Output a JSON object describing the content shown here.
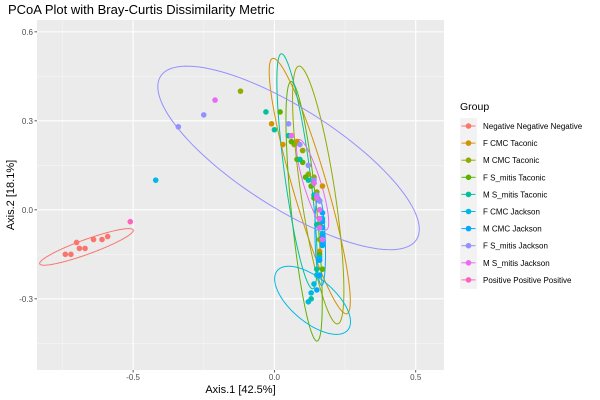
{
  "chart_data": {
    "type": "scatter",
    "title": "PCoA Plot with Bray-Curtis Dissimilarity Metric",
    "xlabel": "Axis.1   [42.5%]",
    "ylabel": "Axis.2   [18.1%]",
    "xlim": [
      -0.84,
      0.6
    ],
    "ylim": [
      -0.54,
      0.64
    ],
    "xticks": [
      -0.5,
      0.0,
      0.5
    ],
    "xtick_labels": [
      "-0.5",
      "0.0",
      "0.5"
    ],
    "yticks": [
      -0.3,
      0.0,
      0.3,
      0.6
    ],
    "ytick_labels": [
      "-0.3",
      "0.0",
      "0.3",
      "0.6"
    ],
    "grid": true,
    "legend_title": "Group",
    "legend_position": "right",
    "series": [
      {
        "name": "Negative Negative Negative",
        "color": "#F8766D",
        "points": [
          [
            -0.74,
            -0.15
          ],
          [
            -0.72,
            -0.15
          ],
          [
            -0.7,
            -0.11
          ],
          [
            -0.69,
            -0.13
          ],
          [
            -0.67,
            -0.13
          ],
          [
            -0.64,
            -0.1
          ],
          [
            -0.61,
            -0.1
          ],
          [
            -0.59,
            -0.09
          ]
        ],
        "ellipse": {
          "cx": -0.665,
          "cy": -0.125,
          "rx": 0.175,
          "ry": 0.025,
          "angle": 19
        }
      },
      {
        "name": "F CMC Taconic",
        "color": "#D39200",
        "points": [
          [
            -0.01,
            0.29
          ],
          [
            0.03,
            0.22
          ],
          [
            0.06,
            0.25
          ],
          [
            0.08,
            0.23
          ],
          [
            0.1,
            0.2
          ],
          [
            0.14,
            0.09
          ],
          [
            0.17,
            0.08
          ],
          [
            0.16,
            0.03
          ],
          [
            0.15,
            -0.05
          ],
          [
            0.16,
            -0.14
          ]
        ],
        "ellipse": {
          "cx": 0.125,
          "cy": 0.08,
          "rx": 0.45,
          "ry": 0.06,
          "angle": -73
        }
      },
      {
        "name": "M CMC Taconic",
        "color": "#93AA00",
        "points": [
          [
            -0.12,
            0.4
          ],
          [
            0.05,
            0.25
          ],
          [
            0.07,
            0.22
          ],
          [
            0.1,
            0.2
          ],
          [
            0.12,
            0.12
          ],
          [
            0.14,
            0.11
          ],
          [
            0.15,
            0.06
          ],
          [
            0.16,
            -0.03
          ],
          [
            0.16,
            -0.1
          ],
          [
            0.15,
            -0.2
          ]
        ],
        "ellipse": {
          "cx": 0.155,
          "cy": 0.05,
          "rx": 0.44,
          "ry": 0.06,
          "angle": -81
        }
      },
      {
        "name": "F S_mitis Taconic",
        "color": "#5BB300",
        "points": [
          [
            0.02,
            0.33
          ],
          [
            0.06,
            0.23
          ],
          [
            0.08,
            0.17
          ],
          [
            0.1,
            0.16
          ],
          [
            0.11,
            0.11
          ],
          [
            0.13,
            0.08
          ],
          [
            0.14,
            0.04
          ],
          [
            0.16,
            -0.05
          ],
          [
            0.16,
            -0.15
          ],
          [
            0.17,
            -0.2
          ]
        ],
        "ellipse": {
          "cx": 0.105,
          "cy": -0.005,
          "rx": 0.44,
          "ry": 0.045,
          "angle": -84
        }
      },
      {
        "name": "M S_mitis Taconic",
        "color": "#00C19F",
        "points": [
          [
            -0.03,
            0.33
          ],
          [
            0.0,
            0.27
          ],
          [
            0.05,
            0.25
          ],
          [
            0.09,
            0.17
          ],
          [
            0.12,
            0.1
          ],
          [
            0.14,
            0.05
          ],
          [
            0.15,
            -0.05
          ],
          [
            0.15,
            -0.2
          ],
          [
            0.13,
            -0.3
          ]
        ],
        "ellipse": {
          "cx": 0.08,
          "cy": 0.13,
          "rx": 0.4,
          "ry": 0.045,
          "angle": -82
        }
      },
      {
        "name": "F CMC Jackson",
        "color": "#00B9E3",
        "points": [
          [
            -0.42,
            0.1
          ],
          [
            0.16,
            0.0
          ],
          [
            0.17,
            -0.03
          ],
          [
            0.17,
            -0.08
          ],
          [
            0.17,
            -0.11
          ],
          [
            0.16,
            -0.16
          ],
          [
            0.15,
            -0.22
          ],
          [
            0.14,
            -0.25
          ],
          [
            0.13,
            -0.28
          ],
          [
            0.12,
            -0.31
          ]
        ],
        "ellipse": {
          "cx": 0.135,
          "cy": -0.305,
          "rx": 0.16,
          "ry": 0.075,
          "angle": -38
        }
      },
      {
        "name": "M CMC Jackson",
        "color": "#00A9FF",
        "points": [
          [
            0.16,
            0.03
          ],
          [
            0.17,
            -0.01
          ],
          [
            0.17,
            -0.04
          ],
          [
            0.17,
            -0.06
          ],
          [
            0.17,
            -0.09
          ],
          [
            0.17,
            -0.12
          ],
          [
            0.16,
            -0.17
          ],
          [
            0.16,
            -0.22
          ],
          [
            0.15,
            -0.27
          ]
        ],
        "ellipse": {
          "cx": 0.162,
          "cy": -0.105,
          "rx": 0.15,
          "ry": 0.018,
          "angle": -88
        }
      },
      {
        "name": "F S_mitis Jackson",
        "color": "#9590FF",
        "points": [
          [
            -0.34,
            0.28
          ],
          [
            -0.25,
            0.32
          ],
          [
            0.05,
            0.29
          ],
          [
            0.09,
            0.22
          ],
          [
            0.12,
            0.15
          ],
          [
            0.14,
            0.1
          ],
          [
            0.15,
            0.05
          ],
          [
            0.16,
            0.03
          ]
        ],
        "ellipse": {
          "cx": 0.05,
          "cy": 0.175,
          "rx": 0.53,
          "ry": 0.17,
          "angle": -31
        }
      },
      {
        "name": "M S_mitis Jackson",
        "color": "#E76BF3",
        "points": [
          [
            -0.21,
            0.37
          ],
          [
            0.06,
            0.25
          ],
          [
            0.14,
            0.09
          ],
          [
            0.15,
            0.04
          ],
          [
            0.16,
            0.0
          ],
          [
            0.16,
            -0.03
          ],
          [
            0.16,
            -0.06
          ],
          [
            0.17,
            -0.1
          ]
        ],
        "ellipse": {
          "cx": 0.135,
          "cy": 0.085,
          "rx": 0.16,
          "ry": 0.03,
          "angle": -72
        }
      },
      {
        "name": "Positive Positive Positive",
        "color": "#FF62BC",
        "points": [
          [
            -0.51,
            -0.04
          ]
        ],
        "ellipse": null
      }
    ]
  }
}
